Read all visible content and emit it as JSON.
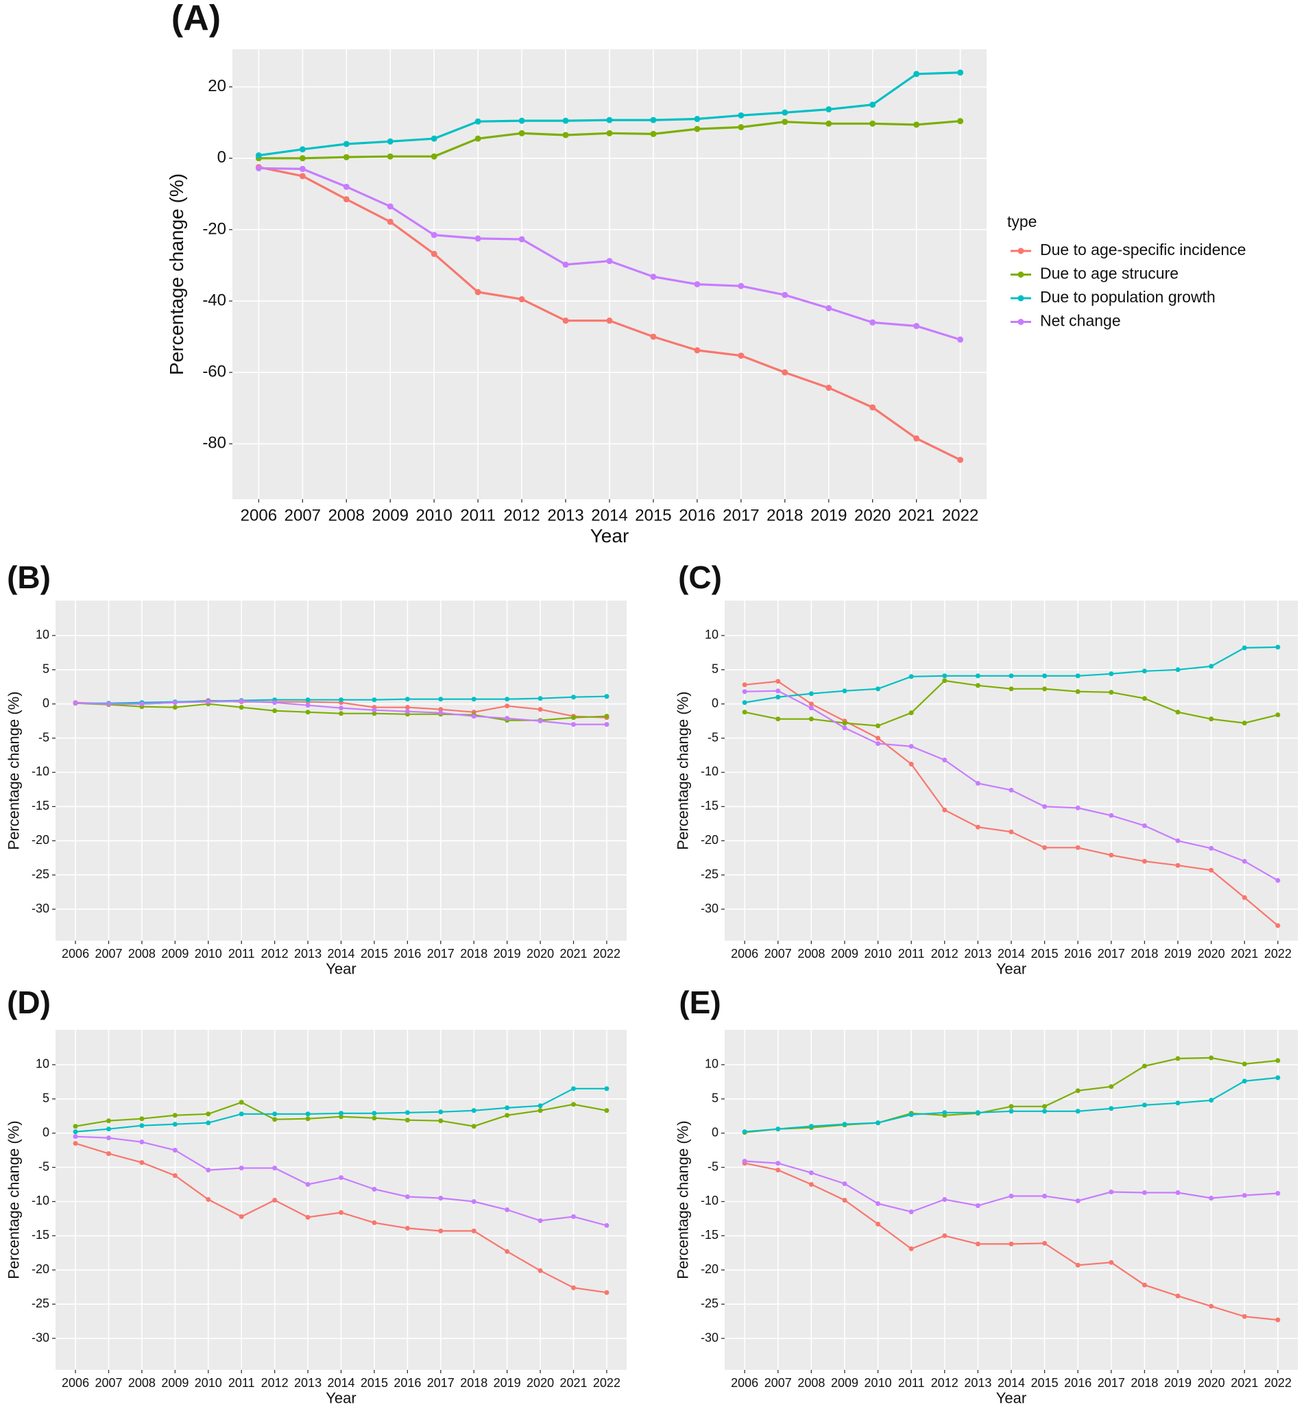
{
  "chart_data": [
    {
      "type": "line",
      "label": "(A)",
      "x_label": "Year",
      "y_label": "Percentage change (%)",
      "categories": [
        "2006",
        "2007",
        "2008",
        "2009",
        "2010",
        "2011",
        "2012",
        "2013",
        "2014",
        "2015",
        "2016",
        "2017",
        "2018",
        "2019",
        "2020",
        "2021",
        "2022"
      ],
      "ylim": [
        -95.5,
        30.5
      ],
      "yticks": [
        -80,
        -60,
        -40,
        -20,
        0,
        20
      ],
      "grid": true,
      "legend": "right",
      "legend_title": "type",
      "series": [
        {
          "name": "Due to age-specific incidence",
          "color": "#F8766D",
          "values": [
            -2.5,
            -5,
            -11.5,
            -17.8,
            -26.8,
            -37.5,
            -39.5,
            -45.5,
            -45.5,
            -50,
            -53.8,
            -55.3,
            -60,
            -64.3,
            -69.8,
            -78.5,
            -84.5
          ]
        },
        {
          "name": "Due to age strucure",
          "color": "#7CAE00",
          "values": [
            0,
            0,
            0.3,
            0.5,
            0.5,
            5.5,
            7,
            6.5,
            7,
            6.8,
            8.2,
            8.7,
            10.2,
            9.7,
            9.7,
            9.4,
            10.4
          ]
        },
        {
          "name": "Due to population growth",
          "color": "#00BFC4",
          "values": [
            0.8,
            2.5,
            4,
            4.7,
            5.5,
            10.3,
            10.5,
            10.5,
            10.7,
            10.7,
            11,
            12,
            12.8,
            13.7,
            15,
            23.6,
            24
          ]
        },
        {
          "name": "Net change",
          "color": "#C77CFF",
          "values": [
            -2.8,
            -3,
            -8,
            -13.5,
            -21.5,
            -22.5,
            -22.7,
            -29.8,
            -28.8,
            -33.2,
            -35.3,
            -35.8,
            -38.3,
            -42,
            -46,
            -47,
            -50.8
          ]
        }
      ]
    },
    {
      "type": "line",
      "label": "(B)",
      "x_label": "Year",
      "y_label": "Percentage change (%)",
      "categories": [
        "2006",
        "2007",
        "2008",
        "2009",
        "2010",
        "2011",
        "2012",
        "2013",
        "2014",
        "2015",
        "2016",
        "2017",
        "2018",
        "2019",
        "2020",
        "2021",
        "2022"
      ],
      "ylim": [
        -34.6,
        15.1
      ],
      "yticks": [
        -30,
        -25,
        -20,
        -15,
        -10,
        -5,
        0,
        5,
        10
      ],
      "grid": true,
      "series": [
        {
          "color": "#F8766D",
          "values": [
            0.2,
            0,
            0,
            0.2,
            0.5,
            0.3,
            0.3,
            0.3,
            0.2,
            -0.5,
            -0.5,
            -0.8,
            -1.2,
            -0.3,
            -0.8,
            -1.8,
            -2
          ]
        },
        {
          "color": "#7CAE00",
          "values": [
            0.1,
            -0.1,
            -0.4,
            -0.5,
            0,
            -0.5,
            -1,
            -1.2,
            -1.4,
            -1.4,
            -1.5,
            -1.5,
            -1.6,
            -2.4,
            -2.4,
            -2,
            -1.8
          ]
        },
        {
          "color": "#00BFC4",
          "values": [
            0.1,
            0.1,
            0.2,
            0.3,
            0.4,
            0.5,
            0.6,
            0.6,
            0.6,
            0.6,
            0.7,
            0.7,
            0.7,
            0.7,
            0.8,
            1,
            1.1
          ]
        },
        {
          "color": "#C77CFF",
          "values": [
            0.1,
            0,
            0,
            0.2,
            0.3,
            0.4,
            0.2,
            -0.2,
            -0.6,
            -0.9,
            -1.1,
            -1.3,
            -1.8,
            -2.1,
            -2.5,
            -3,
            -3
          ]
        }
      ]
    },
    {
      "type": "line",
      "label": "(C)",
      "x_label": "Year",
      "y_label": "Percentage change (%)",
      "categories": [
        "2006",
        "2007",
        "2008",
        "2009",
        "2010",
        "2011",
        "2012",
        "2013",
        "2014",
        "2015",
        "2016",
        "2017",
        "2018",
        "2019",
        "2020",
        "2021",
        "2022"
      ],
      "ylim": [
        -34.6,
        15.1
      ],
      "yticks": [
        -30,
        -25,
        -20,
        -15,
        -10,
        -5,
        0,
        5,
        10
      ],
      "grid": true,
      "series": [
        {
          "color": "#F8766D",
          "values": [
            2.8,
            3.3,
            0,
            -2.5,
            -5,
            -8.8,
            -15.5,
            -18,
            -18.7,
            -21,
            -21,
            -22.1,
            -23,
            -23.6,
            -24.3,
            -28.3,
            -32.4
          ]
        },
        {
          "color": "#7CAE00",
          "values": [
            -1.2,
            -2.2,
            -2.2,
            -2.8,
            -3.2,
            -1.3,
            3.4,
            2.7,
            2.2,
            2.2,
            1.8,
            1.7,
            0.8,
            -1.2,
            -2.2,
            -2.8,
            -1.6
          ]
        },
        {
          "color": "#00BFC4",
          "values": [
            0.2,
            1,
            1.5,
            1.9,
            2.2,
            4,
            4.1,
            4.1,
            4.1,
            4.1,
            4.1,
            4.4,
            4.8,
            5,
            5.5,
            8.2,
            8.3
          ]
        },
        {
          "color": "#C77CFF",
          "values": [
            1.8,
            1.9,
            -0.6,
            -3.5,
            -5.8,
            -6.2,
            -8.2,
            -11.6,
            -12.6,
            -15,
            -15.2,
            -16.3,
            -17.8,
            -20,
            -21.1,
            -23,
            -25.8
          ]
        }
      ]
    },
    {
      "type": "line",
      "label": "(D)",
      "x_label": "Year",
      "y_label": "Percentage change (%)",
      "categories": [
        "2006",
        "2007",
        "2008",
        "2009",
        "2010",
        "2011",
        "2012",
        "2013",
        "2014",
        "2015",
        "2016",
        "2017",
        "2018",
        "2019",
        "2020",
        "2021",
        "2022"
      ],
      "ylim": [
        -34.6,
        15.1
      ],
      "yticks": [
        -30,
        -25,
        -20,
        -15,
        -10,
        -5,
        0,
        5,
        10
      ],
      "grid": true,
      "series": [
        {
          "color": "#F8766D",
          "values": [
            -1.5,
            -3,
            -4.3,
            -6.2,
            -9.7,
            -12.2,
            -9.8,
            -12.3,
            -11.6,
            -13.1,
            -13.9,
            -14.3,
            -14.3,
            -17.3,
            -20.1,
            -22.6,
            -23.3
          ]
        },
        {
          "color": "#7CAE00",
          "values": [
            1,
            1.8,
            2.1,
            2.6,
            2.8,
            4.5,
            2,
            2.1,
            2.4,
            2.2,
            1.9,
            1.8,
            1,
            2.6,
            3.3,
            4.2,
            3.3
          ]
        },
        {
          "color": "#00BFC4",
          "values": [
            0.2,
            0.6,
            1.1,
            1.3,
            1.5,
            2.8,
            2.8,
            2.8,
            2.9,
            2.9,
            3,
            3.1,
            3.3,
            3.7,
            4,
            6.5,
            6.5
          ]
        },
        {
          "color": "#C77CFF",
          "values": [
            -0.5,
            -0.7,
            -1.3,
            -2.5,
            -5.4,
            -5.1,
            -5.1,
            -7.5,
            -6.5,
            -8.2,
            -9.3,
            -9.5,
            -10,
            -11.2,
            -12.8,
            -12.2,
            -13.5
          ]
        }
      ]
    },
    {
      "type": "line",
      "label": "(E)",
      "x_label": "Year",
      "y_label": "Percentage change (%)",
      "categories": [
        "2006",
        "2007",
        "2008",
        "2009",
        "2010",
        "2011",
        "2012",
        "2013",
        "2014",
        "2015",
        "2016",
        "2017",
        "2018",
        "2019",
        "2020",
        "2021",
        "2022"
      ],
      "ylim": [
        -34.6,
        15.1
      ],
      "yticks": [
        -30,
        -25,
        -20,
        -15,
        -10,
        -5,
        0,
        5,
        10
      ],
      "grid": true,
      "series": [
        {
          "color": "#F8766D",
          "values": [
            -4.4,
            -5.4,
            -7.5,
            -9.8,
            -13.3,
            -16.9,
            -15,
            -16.2,
            -16.2,
            -16.1,
            -19.3,
            -18.9,
            -22.2,
            -23.8,
            -25.3,
            -26.8,
            -27.3
          ]
        },
        {
          "color": "#7CAE00",
          "values": [
            0.1,
            0.6,
            0.8,
            1.2,
            1.5,
            2.9,
            2.6,
            2.9,
            3.9,
            3.9,
            6.2,
            6.8,
            9.8,
            10.9,
            11,
            10.1,
            10.6
          ]
        },
        {
          "color": "#00BFC4",
          "values": [
            0.2,
            0.6,
            1,
            1.3,
            1.5,
            2.7,
            3,
            3,
            3.2,
            3.2,
            3.2,
            3.6,
            4.1,
            4.4,
            4.8,
            7.6,
            8.1
          ]
        },
        {
          "color": "#C77CFF",
          "values": [
            -4.1,
            -4.4,
            -5.8,
            -7.4,
            -10.3,
            -11.5,
            -9.7,
            -10.6,
            -9.2,
            -9.2,
            -9.9,
            -8.6,
            -8.7,
            -8.7,
            -9.5,
            -9.1,
            -8.8
          ]
        }
      ]
    }
  ]
}
